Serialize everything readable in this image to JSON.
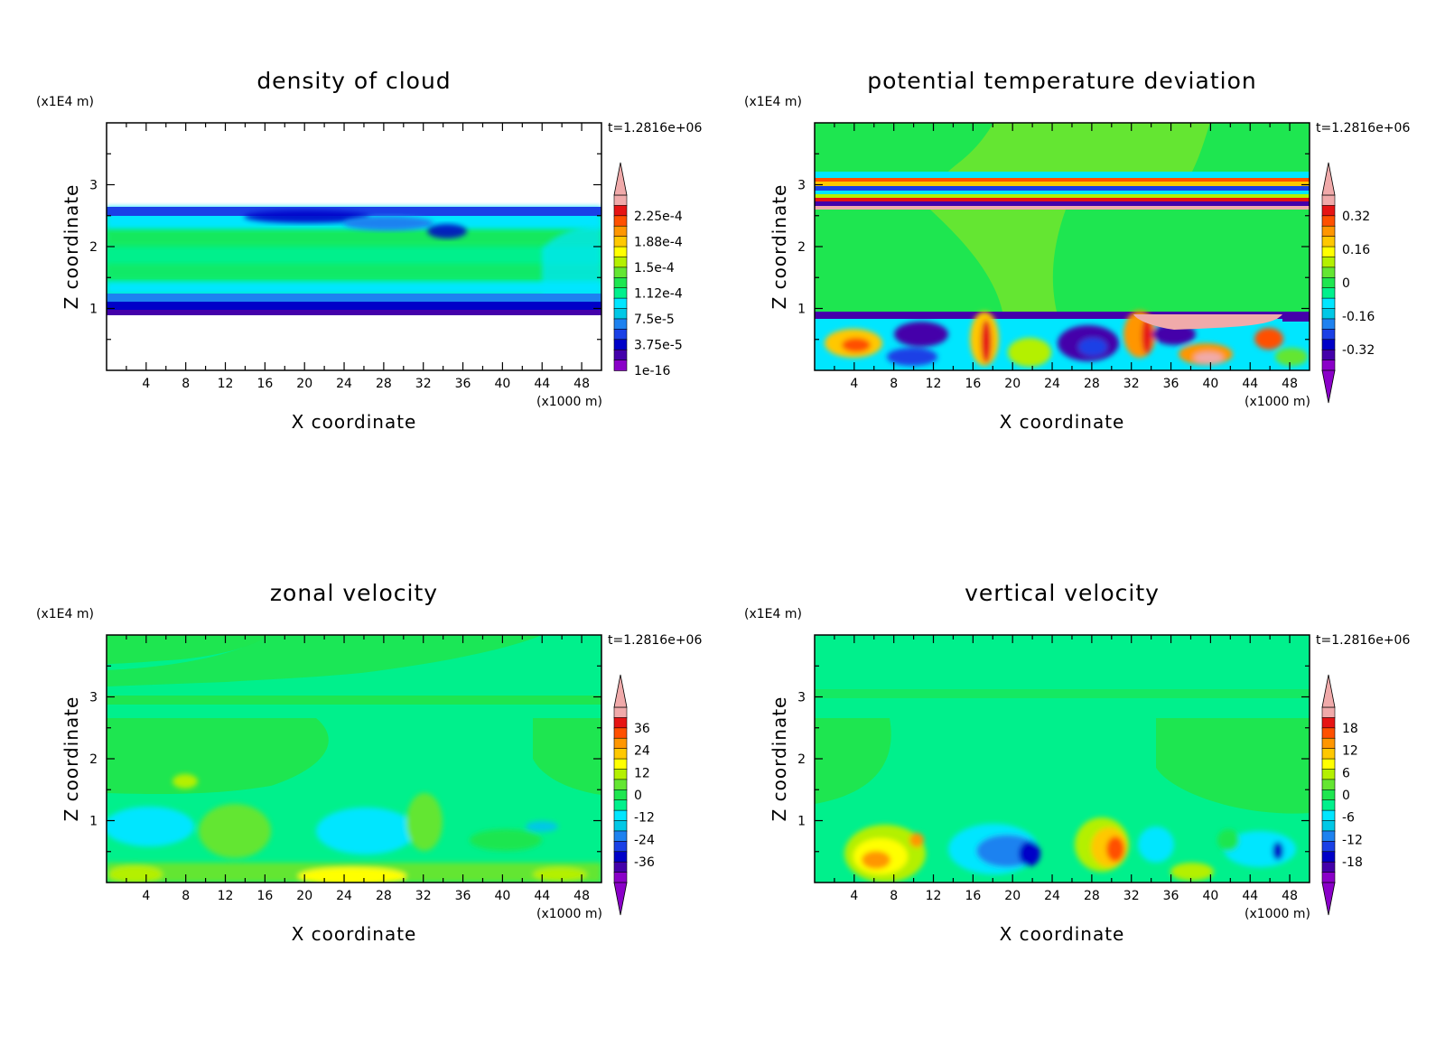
{
  "colors": {
    "scale": [
      "#8a00c8",
      "#4400aa",
      "#0000c8",
      "#1a40e6",
      "#1e82f0",
      "#00c8e6",
      "#00e6ff",
      "#00f08c",
      "#1ee650",
      "#64e632",
      "#b4f000",
      "#ffff00",
      "#ffc800",
      "#ff9600",
      "#ff5000",
      "#e61414",
      "#f0aaaa"
    ],
    "background_white": "#ffffff"
  },
  "chart_data": [
    {
      "type": "heatmap",
      "title": "density of cloud",
      "xlabel": "X coordinate",
      "ylabel": "Z coordinate",
      "x_unit": "(x1000 m)",
      "y_unit": "(x1E4 m)",
      "time_label": "t=1.2816e+06",
      "xlim": [
        0,
        50
      ],
      "ylim": [
        0,
        4
      ],
      "xticks": [
        4,
        8,
        12,
        16,
        20,
        24,
        28,
        32,
        36,
        40,
        44,
        48
      ],
      "yticks": [
        1,
        2,
        3
      ],
      "colorbar_labels": [
        "2.25e-4",
        "1.88e-4",
        "1.5e-4",
        "1.12e-4",
        "7.5e-5",
        "3.75e-5",
        "1e-16"
      ],
      "colorbar_has_min_arrow": false,
      "colorbar_has_max_arrow": true
    },
    {
      "type": "heatmap",
      "title": "potential temperature deviation",
      "xlabel": "X coordinate",
      "ylabel": "Z coordinate",
      "x_unit": "(x1000 m)",
      "y_unit": "(x1E4 m)",
      "time_label": "t=1.2816e+06",
      "xlim": [
        0,
        50
      ],
      "ylim": [
        0,
        4
      ],
      "xticks": [
        4,
        8,
        12,
        16,
        20,
        24,
        28,
        32,
        36,
        40,
        44,
        48
      ],
      "yticks": [
        1,
        2,
        3
      ],
      "colorbar_labels": [
        "0.32",
        "0.16",
        "0",
        "-0.16",
        "-0.32"
      ],
      "colorbar_has_min_arrow": true,
      "colorbar_has_max_arrow": true
    },
    {
      "type": "heatmap",
      "title": "zonal velocity",
      "xlabel": "X coordinate",
      "ylabel": "Z coordinate",
      "x_unit": "(x1000 m)",
      "y_unit": "(x1E4 m)",
      "time_label": "t=1.2816e+06",
      "xlim": [
        0,
        50
      ],
      "ylim": [
        0,
        4
      ],
      "xticks": [
        4,
        8,
        12,
        16,
        20,
        24,
        28,
        32,
        36,
        40,
        44,
        48
      ],
      "yticks": [
        1,
        2,
        3
      ],
      "colorbar_labels": [
        "36",
        "24",
        "12",
        "0",
        "-12",
        "-24",
        "-36"
      ],
      "colorbar_has_min_arrow": true,
      "colorbar_has_max_arrow": true
    },
    {
      "type": "heatmap",
      "title": "vertical velocity",
      "xlabel": "X coordinate",
      "ylabel": "Z coordinate",
      "x_unit": "(x1000 m)",
      "y_unit": "(x1E4 m)",
      "time_label": "t=1.2816e+06",
      "xlim": [
        0,
        50
      ],
      "ylim": [
        0,
        4
      ],
      "xticks": [
        4,
        8,
        12,
        16,
        20,
        24,
        28,
        32,
        36,
        40,
        44,
        48
      ],
      "yticks": [
        1,
        2,
        3
      ],
      "colorbar_labels": [
        "18",
        "12",
        "6",
        "0",
        "-6",
        "-12",
        "-18"
      ],
      "colorbar_has_min_arrow": true,
      "colorbar_has_max_arrow": true
    }
  ]
}
